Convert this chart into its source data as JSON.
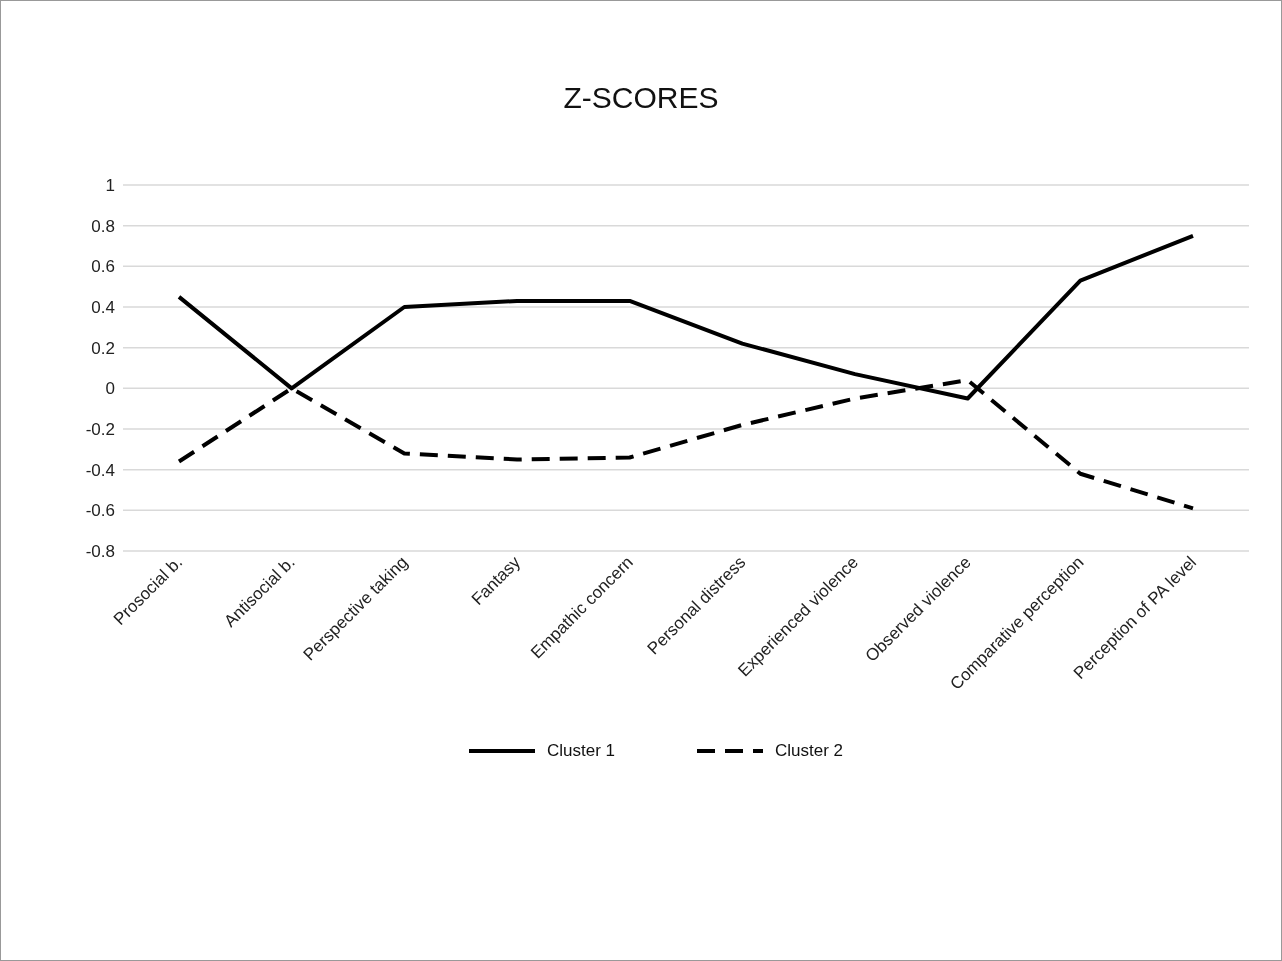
{
  "chart_data": {
    "type": "line",
    "title": "Z-SCORES",
    "categories": [
      "Prosocial b.",
      "Antisocial b.",
      "Perspective taking",
      "Fantasy",
      "Empathic concern",
      "Personal distress",
      "Experienced violence",
      "Observed violence",
      "Comparative perception",
      "Perception of PA level"
    ],
    "series": [
      {
        "name": "Cluster 1",
        "color": "#000000",
        "line_style": "solid",
        "values": [
          0.45,
          0,
          0.4,
          0.43,
          0.43,
          0.22,
          0.07,
          -0.05,
          0.53,
          0.75
        ]
      },
      {
        "name": "Cluster 2",
        "color": "#000000",
        "line_style": "dashed",
        "values": [
          -0.36,
          0,
          -0.32,
          -0.35,
          -0.34,
          -0.18,
          -0.05,
          0.04,
          -0.42,
          -0.59
        ]
      }
    ],
    "ylim": [
      -0.8,
      1
    ],
    "yticks": [
      -0.8,
      -0.6,
      -0.4,
      -0.2,
      0,
      0.2,
      0.4,
      0.6,
      0.8,
      1
    ],
    "grid": "y",
    "legend": "bottom",
    "marker": "none"
  }
}
